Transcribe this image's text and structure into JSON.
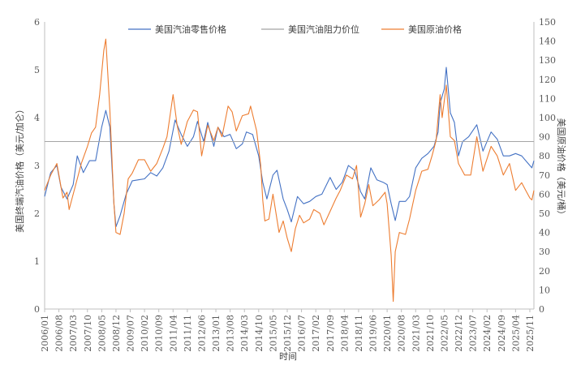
{
  "chart_data": {
    "type": "line",
    "xlabel": "时间",
    "ylabel_left": "美国终端汽油价格（美元/加仑）",
    "ylabel_right": "美国原油价格（美元/桶）",
    "ylim_left": [
      0,
      6
    ],
    "ylim_right": [
      0,
      150
    ],
    "yticks_left": [
      0,
      1,
      2,
      3,
      4,
      5,
      6
    ],
    "yticks_right": [
      0,
      10,
      20,
      30,
      40,
      50,
      60,
      70,
      80,
      90,
      100,
      110,
      120,
      130,
      140,
      150
    ],
    "x_tick_labels": [
      "2006/01",
      "2006/08",
      "2007/03",
      "2007/10",
      "2008/05",
      "2008/12",
      "2009/07",
      "2010/02",
      "2010/09",
      "2011/04",
      "2011/11",
      "2012/06",
      "2013/01",
      "2013/08",
      "2014/03",
      "2014/10",
      "2015/05",
      "2015/12",
      "2016/07",
      "2017/02",
      "2017/09",
      "2018/04",
      "2018/11",
      "2019/06",
      "2020/01",
      "2020/08",
      "2021/03",
      "2021/10",
      "2022/05",
      "2022/12",
      "2023/07",
      "2024/02",
      "2024/09",
      "2025/04",
      "2025/11"
    ],
    "legend_position": "top",
    "grid": false,
    "series": [
      {
        "name": "美国汽油零售价格",
        "axis": "left",
        "color": "#4472C4",
        "points": [
          [
            "2006/01",
            2.35
          ],
          [
            "2006/04",
            2.85
          ],
          [
            "2006/07",
            3.0
          ],
          [
            "2006/09",
            2.55
          ],
          [
            "2006/12",
            2.3
          ],
          [
            "2007/03",
            2.6
          ],
          [
            "2007/05",
            3.2
          ],
          [
            "2007/08",
            2.85
          ],
          [
            "2007/11",
            3.1
          ],
          [
            "2008/02",
            3.1
          ],
          [
            "2008/05",
            3.8
          ],
          [
            "2008/07",
            4.15
          ],
          [
            "2008/09",
            3.8
          ],
          [
            "2008/11",
            2.2
          ],
          [
            "2008/12",
            1.72
          ],
          [
            "2009/02",
            1.95
          ],
          [
            "2009/05",
            2.4
          ],
          [
            "2009/08",
            2.68
          ],
          [
            "2009/11",
            2.7
          ],
          [
            "2010/02",
            2.72
          ],
          [
            "2010/05",
            2.85
          ],
          [
            "2010/08",
            2.78
          ],
          [
            "2010/11",
            2.95
          ],
          [
            "2011/02",
            3.3
          ],
          [
            "2011/05",
            3.95
          ],
          [
            "2011/08",
            3.65
          ],
          [
            "2011/11",
            3.4
          ],
          [
            "2012/02",
            3.6
          ],
          [
            "2012/04",
            3.92
          ],
          [
            "2012/07",
            3.5
          ],
          [
            "2012/09",
            3.9
          ],
          [
            "2012/12",
            3.4
          ],
          [
            "2013/02",
            3.8
          ],
          [
            "2013/05",
            3.6
          ],
          [
            "2013/08",
            3.65
          ],
          [
            "2013/11",
            3.35
          ],
          [
            "2014/02",
            3.45
          ],
          [
            "2014/04",
            3.7
          ],
          [
            "2014/07",
            3.65
          ],
          [
            "2014/10",
            3.2
          ],
          [
            "2014/12",
            2.65
          ],
          [
            "2015/02",
            2.3
          ],
          [
            "2015/05",
            2.8
          ],
          [
            "2015/07",
            2.9
          ],
          [
            "2015/10",
            2.3
          ],
          [
            "2015/12",
            2.08
          ],
          [
            "2016/02",
            1.82
          ],
          [
            "2016/05",
            2.35
          ],
          [
            "2016/08",
            2.2
          ],
          [
            "2016/11",
            2.25
          ],
          [
            "2017/02",
            2.35
          ],
          [
            "2017/05",
            2.4
          ],
          [
            "2017/09",
            2.75
          ],
          [
            "2017/12",
            2.5
          ],
          [
            "2018/03",
            2.65
          ],
          [
            "2018/06",
            3.0
          ],
          [
            "2018/09",
            2.9
          ],
          [
            "2018/12",
            2.45
          ],
          [
            "2019/02",
            2.3
          ],
          [
            "2019/05",
            2.95
          ],
          [
            "2019/08",
            2.7
          ],
          [
            "2019/11",
            2.65
          ],
          [
            "2020/01",
            2.6
          ],
          [
            "2020/03",
            2.2
          ],
          [
            "2020/05",
            1.85
          ],
          [
            "2020/07",
            2.25
          ],
          [
            "2020/10",
            2.25
          ],
          [
            "2020/12",
            2.35
          ],
          [
            "2021/03",
            2.95
          ],
          [
            "2021/06",
            3.15
          ],
          [
            "2021/09",
            3.25
          ],
          [
            "2021/12",
            3.4
          ],
          [
            "2022/02",
            3.7
          ],
          [
            "2022/03",
            4.3
          ],
          [
            "2022/05",
            4.6
          ],
          [
            "2022/06",
            5.05
          ],
          [
            "2022/08",
            4.1
          ],
          [
            "2022/10",
            3.9
          ],
          [
            "2022/12",
            3.2
          ],
          [
            "2023/02",
            3.5
          ],
          [
            "2023/05",
            3.6
          ],
          [
            "2023/09",
            3.85
          ],
          [
            "2023/12",
            3.3
          ],
          [
            "2024/04",
            3.7
          ],
          [
            "2024/07",
            3.55
          ],
          [
            "2024/10",
            3.2
          ],
          [
            "2025/01",
            3.2
          ],
          [
            "2025/04",
            3.25
          ],
          [
            "2025/07",
            3.2
          ],
          [
            "2025/10",
            3.05
          ],
          [
            "2025/12",
            2.95
          ],
          [
            "2026/01",
            3.1
          ]
        ]
      },
      {
        "name": "美国汽油阻力价位",
        "axis": "left",
        "color": "#A5A5A5",
        "points": [
          [
            "2006/01",
            3.5
          ],
          [
            "2026/01",
            3.5
          ]
        ]
      },
      {
        "name": "美国原油价格",
        "axis": "right",
        "color": "#ED7D31",
        "points": [
          [
            "2006/01",
            62
          ],
          [
            "2006/04",
            70
          ],
          [
            "2006/07",
            76
          ],
          [
            "2006/10",
            58
          ],
          [
            "2006/12",
            61
          ],
          [
            "2007/01",
            52
          ],
          [
            "2007/04",
            64
          ],
          [
            "2007/07",
            76
          ],
          [
            "2007/10",
            85
          ],
          [
            "2007/12",
            92
          ],
          [
            "2008/02",
            95
          ],
          [
            "2008/04",
            112
          ],
          [
            "2008/06",
            135
          ],
          [
            "2008/07",
            141
          ],
          [
            "2008/09",
            104
          ],
          [
            "2008/11",
            55
          ],
          [
            "2008/12",
            40
          ],
          [
            "2009/02",
            39
          ],
          [
            "2009/04",
            50
          ],
          [
            "2009/06",
            68
          ],
          [
            "2009/08",
            71
          ],
          [
            "2009/11",
            78
          ],
          [
            "2010/02",
            78
          ],
          [
            "2010/05",
            72
          ],
          [
            "2010/08",
            76
          ],
          [
            "2010/11",
            84
          ],
          [
            "2011/01",
            90
          ],
          [
            "2011/04",
            112
          ],
          [
            "2011/06",
            96
          ],
          [
            "2011/08",
            86
          ],
          [
            "2011/11",
            98
          ],
          [
            "2012/02",
            104
          ],
          [
            "2012/04",
            103
          ],
          [
            "2012/06",
            80
          ],
          [
            "2012/09",
            96
          ],
          [
            "2012/12",
            88
          ],
          [
            "2013/02",
            95
          ],
          [
            "2013/04",
            90
          ],
          [
            "2013/07",
            106
          ],
          [
            "2013/09",
            103
          ],
          [
            "2013/11",
            93
          ],
          [
            "2014/02",
            101
          ],
          [
            "2014/05",
            102
          ],
          [
            "2014/06",
            106
          ],
          [
            "2014/09",
            93
          ],
          [
            "2014/11",
            75
          ],
          [
            "2014/12",
            57
          ],
          [
            "2015/01",
            46
          ],
          [
            "2015/03",
            47
          ],
          [
            "2015/05",
            60
          ],
          [
            "2015/08",
            40
          ],
          [
            "2015/10",
            46
          ],
          [
            "2015/12",
            37
          ],
          [
            "2016/02",
            30
          ],
          [
            "2016/04",
            42
          ],
          [
            "2016/06",
            49
          ],
          [
            "2016/08",
            45
          ],
          [
            "2016/11",
            47
          ],
          [
            "2017/01",
            52
          ],
          [
            "2017/04",
            50
          ],
          [
            "2017/06",
            44
          ],
          [
            "2017/09",
            51
          ],
          [
            "2017/12",
            58
          ],
          [
            "2018/02",
            62
          ],
          [
            "2018/05",
            70
          ],
          [
            "2018/08",
            68
          ],
          [
            "2018/10",
            75
          ],
          [
            "2018/12",
            48
          ],
          [
            "2019/02",
            55
          ],
          [
            "2019/04",
            65
          ],
          [
            "2019/06",
            54
          ],
          [
            "2019/09",
            57
          ],
          [
            "2019/12",
            61
          ],
          [
            "2020/01",
            55
          ],
          [
            "2020/03",
            28
          ],
          [
            "2020/04",
            4
          ],
          [
            "2020/05",
            30
          ],
          [
            "2020/07",
            40
          ],
          [
            "2020/10",
            39
          ],
          [
            "2020/12",
            47
          ],
          [
            "2021/03",
            62
          ],
          [
            "2021/06",
            72
          ],
          [
            "2021/09",
            73
          ],
          [
            "2021/11",
            80
          ],
          [
            "2022/01",
            88
          ],
          [
            "2022/03",
            112
          ],
          [
            "2022/04",
            100
          ],
          [
            "2022/06",
            117
          ],
          [
            "2022/08",
            90
          ],
          [
            "2022/10",
            88
          ],
          [
            "2022/12",
            76
          ],
          [
            "2023/03",
            70
          ],
          [
            "2023/06",
            70
          ],
          [
            "2023/09",
            90
          ],
          [
            "2023/12",
            72
          ],
          [
            "2024/04",
            85
          ],
          [
            "2024/07",
            80
          ],
          [
            "2024/10",
            70
          ],
          [
            "2025/01",
            76
          ],
          [
            "2025/04",
            62
          ],
          [
            "2025/07",
            66
          ],
          [
            "2025/09",
            62
          ],
          [
            "2025/11",
            58
          ],
          [
            "2025/12",
            57
          ],
          [
            "2026/01",
            62
          ]
        ]
      }
    ]
  }
}
